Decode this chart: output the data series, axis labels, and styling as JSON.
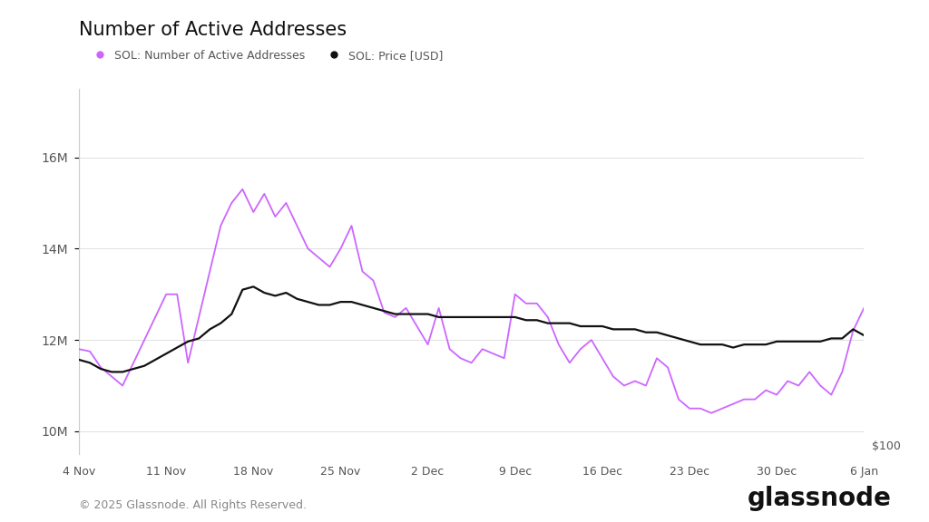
{
  "title": "Number of Active Addresses",
  "legend": [
    "SOL: Number of Active Addresses",
    "SOL: Price [USD]"
  ],
  "legend_colors": [
    "#cc66ff",
    "#111111"
  ],
  "active_addresses_color": "#cc66ff",
  "price_color": "#111111",
  "background_color": "#ffffff",
  "ylim_left": [
    9500000,
    17500000
  ],
  "ylim_right": [
    95,
    215
  ],
  "yticks_left": [
    10000000,
    12000000,
    14000000,
    16000000
  ],
  "ytick_labels_left": [
    "10M",
    "12M",
    "14M",
    "16M"
  ],
  "price_label_right": "$100",
  "xlabel_dates": [
    "4 Nov",
    "11 Nov",
    "18 Nov",
    "25 Nov",
    "2 Dec",
    "9 Dec",
    "16 Dec",
    "23 Dec",
    "30 Dec",
    "6 Jan"
  ],
  "footer_left": "© 2025 Glassnode. All Rights Reserved.",
  "footer_right": "glassnode",
  "active_addresses": [
    11800000,
    11750000,
    11400000,
    11200000,
    11000000,
    11500000,
    12000000,
    12500000,
    13000000,
    13000000,
    11500000,
    12500000,
    13500000,
    14500000,
    15000000,
    15300000,
    14800000,
    15200000,
    14700000,
    15000000,
    14500000,
    14000000,
    13800000,
    13600000,
    14000000,
    14500000,
    13500000,
    13300000,
    12600000,
    12500000,
    12700000,
    12300000,
    11900000,
    12700000,
    11800000,
    11600000,
    11500000,
    11800000,
    11700000,
    11600000,
    13000000,
    12800000,
    12800000,
    12500000,
    11900000,
    11500000,
    11800000,
    12000000,
    11600000,
    11200000,
    11000000,
    11100000,
    11000000,
    11600000,
    11400000,
    10700000,
    10500000,
    10500000,
    10400000,
    10500000,
    10600000,
    10700000,
    10700000,
    10900000,
    10800000,
    11100000,
    11000000,
    11300000,
    11000000,
    10800000,
    11300000,
    12200000,
    12700000
  ],
  "price_usd": [
    126,
    125,
    123,
    122,
    122,
    123,
    124,
    126,
    128,
    130,
    132,
    133,
    136,
    138,
    141,
    149,
    150,
    148,
    147,
    148,
    146,
    145,
    144,
    144,
    145,
    145,
    144,
    143,
    142,
    141,
    141,
    141,
    141,
    140,
    140,
    140,
    140,
    140,
    140,
    140,
    140,
    139,
    139,
    138,
    138,
    138,
    137,
    137,
    137,
    136,
    136,
    136,
    135,
    135,
    134,
    133,
    132,
    131,
    131,
    131,
    130,
    131,
    131,
    131,
    132,
    132,
    132,
    132,
    132,
    133,
    133,
    136,
    134
  ]
}
